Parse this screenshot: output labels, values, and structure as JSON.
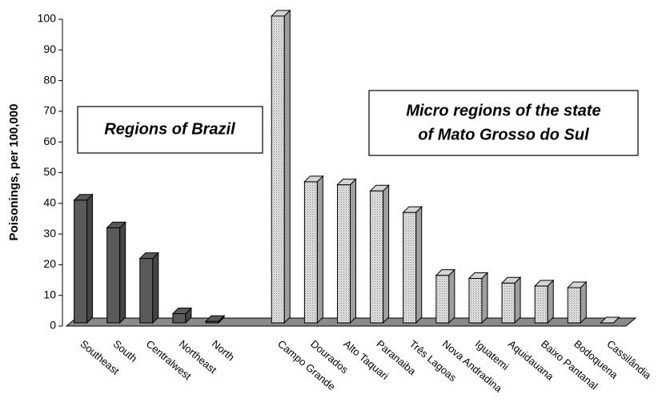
{
  "chart_data": {
    "type": "bar3d",
    "y_axis_label": "Poisonings, per 100,000",
    "categories": [
      "Southeast",
      "South",
      "Centralwest",
      "Northeast",
      "North",
      null,
      "Campo Grande",
      "Dourados",
      "Alto Taquari",
      "Paranaiba",
      "Três Lagoas",
      "Nova Andradina",
      "Iguatemi",
      "Aquidauana",
      "Baixo Pantanal",
      "Bodoquena",
      "Cassilândia"
    ],
    "values": [
      40,
      31,
      21,
      3,
      0.5,
      null,
      100,
      46,
      45,
      43,
      36,
      15.5,
      14.5,
      13,
      12,
      11.5,
      0
    ],
    "colors": [
      "#5a5a5a",
      "#5a5a5a",
      "#5a5a5a",
      "#5a5a5a",
      "#5a5a5a",
      null,
      "#d4d4d4",
      "#d4d4d4",
      "#d4d4d4",
      "#d4d4d4",
      "#d4d4d4",
      "#d4d4d4",
      "#d4d4d4",
      "#d4d4d4",
      "#d4d4d4",
      "#d4d4d4",
      "#d4d4d4"
    ],
    "ylim": [
      0,
      100
    ],
    "yticks": [
      0,
      10,
      20,
      30,
      40,
      50,
      60,
      70,
      80,
      90,
      100
    ],
    "annotations": [
      {
        "lines": [
          "Regions of Brazil"
        ]
      },
      {
        "lines": [
          "Micro regions of the state",
          "of Mato Grosso do Sul"
        ]
      }
    ]
  }
}
